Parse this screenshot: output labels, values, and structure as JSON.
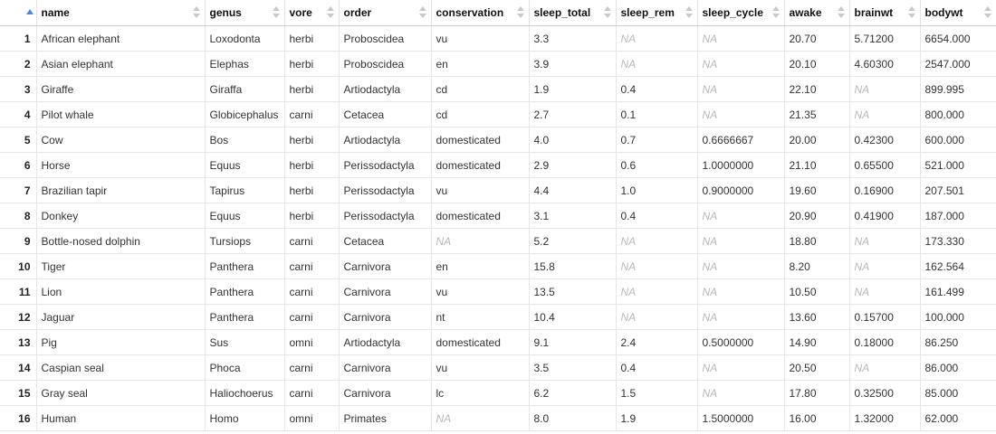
{
  "table": {
    "columns": [
      {
        "key": "name",
        "label": "name"
      },
      {
        "key": "genus",
        "label": "genus"
      },
      {
        "key": "vore",
        "label": "vore"
      },
      {
        "key": "order",
        "label": "order"
      },
      {
        "key": "conservation",
        "label": "conservation"
      },
      {
        "key": "sleep_total",
        "label": "sleep_total"
      },
      {
        "key": "sleep_rem",
        "label": "sleep_rem"
      },
      {
        "key": "sleep_cycle",
        "label": "sleep_cycle"
      },
      {
        "key": "awake",
        "label": "awake"
      },
      {
        "key": "brainwt",
        "label": "brainwt"
      },
      {
        "key": "bodywt",
        "label": "bodywt"
      }
    ],
    "na_label": "NA",
    "rows": [
      {
        "index": "1",
        "cells": [
          "African elephant",
          "Loxodonta",
          "herbi",
          "Proboscidea",
          "vu",
          "3.3",
          "NA",
          "NA",
          "20.70",
          "5.71200",
          "6654.000"
        ]
      },
      {
        "index": "2",
        "cells": [
          "Asian elephant",
          "Elephas",
          "herbi",
          "Proboscidea",
          "en",
          "3.9",
          "NA",
          "NA",
          "20.10",
          "4.60300",
          "2547.000"
        ]
      },
      {
        "index": "3",
        "cells": [
          "Giraffe",
          "Giraffa",
          "herbi",
          "Artiodactyla",
          "cd",
          "1.9",
          "0.4",
          "NA",
          "22.10",
          "NA",
          "899.995"
        ]
      },
      {
        "index": "4",
        "cells": [
          "Pilot whale",
          "Globicephalus",
          "carni",
          "Cetacea",
          "cd",
          "2.7",
          "0.1",
          "NA",
          "21.35",
          "NA",
          "800.000"
        ]
      },
      {
        "index": "5",
        "cells": [
          "Cow",
          "Bos",
          "herbi",
          "Artiodactyla",
          "domesticated",
          "4.0",
          "0.7",
          "0.6666667",
          "20.00",
          "0.42300",
          "600.000"
        ]
      },
      {
        "index": "6",
        "cells": [
          "Horse",
          "Equus",
          "herbi",
          "Perissodactyla",
          "domesticated",
          "2.9",
          "0.6",
          "1.0000000",
          "21.10",
          "0.65500",
          "521.000"
        ]
      },
      {
        "index": "7",
        "cells": [
          "Brazilian tapir",
          "Tapirus",
          "herbi",
          "Perissodactyla",
          "vu",
          "4.4",
          "1.0",
          "0.9000000",
          "19.60",
          "0.16900",
          "207.501"
        ]
      },
      {
        "index": "8",
        "cells": [
          "Donkey",
          "Equus",
          "herbi",
          "Perissodactyla",
          "domesticated",
          "3.1",
          "0.4",
          "NA",
          "20.90",
          "0.41900",
          "187.000"
        ]
      },
      {
        "index": "9",
        "cells": [
          "Bottle-nosed dolphin",
          "Tursiops",
          "carni",
          "Cetacea",
          "NA",
          "5.2",
          "NA",
          "NA",
          "18.80",
          "NA",
          "173.330"
        ]
      },
      {
        "index": "10",
        "cells": [
          "Tiger",
          "Panthera",
          "carni",
          "Carnivora",
          "en",
          "15.8",
          "NA",
          "NA",
          "8.20",
          "NA",
          "162.564"
        ]
      },
      {
        "index": "11",
        "cells": [
          "Lion",
          "Panthera",
          "carni",
          "Carnivora",
          "vu",
          "13.5",
          "NA",
          "NA",
          "10.50",
          "NA",
          "161.499"
        ]
      },
      {
        "index": "12",
        "cells": [
          "Jaguar",
          "Panthera",
          "carni",
          "Carnivora",
          "nt",
          "10.4",
          "NA",
          "NA",
          "13.60",
          "0.15700",
          "100.000"
        ]
      },
      {
        "index": "13",
        "cells": [
          "Pig",
          "Sus",
          "omni",
          "Artiodactyla",
          "domesticated",
          "9.1",
          "2.4",
          "0.5000000",
          "14.90",
          "0.18000",
          "86.250"
        ]
      },
      {
        "index": "14",
        "cells": [
          "Caspian seal",
          "Phoca",
          "carni",
          "Carnivora",
          "vu",
          "3.5",
          "0.4",
          "NA",
          "20.50",
          "NA",
          "86.000"
        ]
      },
      {
        "index": "15",
        "cells": [
          "Gray seal",
          "Haliochoerus",
          "carni",
          "Carnivora",
          "lc",
          "6.2",
          "1.5",
          "NA",
          "17.80",
          "0.32500",
          "85.000"
        ]
      },
      {
        "index": "16",
        "cells": [
          "Human",
          "Homo",
          "omni",
          "Primates",
          "NA",
          "8.0",
          "1.9",
          "1.5000000",
          "16.00",
          "1.32000",
          "62.000"
        ]
      }
    ]
  }
}
